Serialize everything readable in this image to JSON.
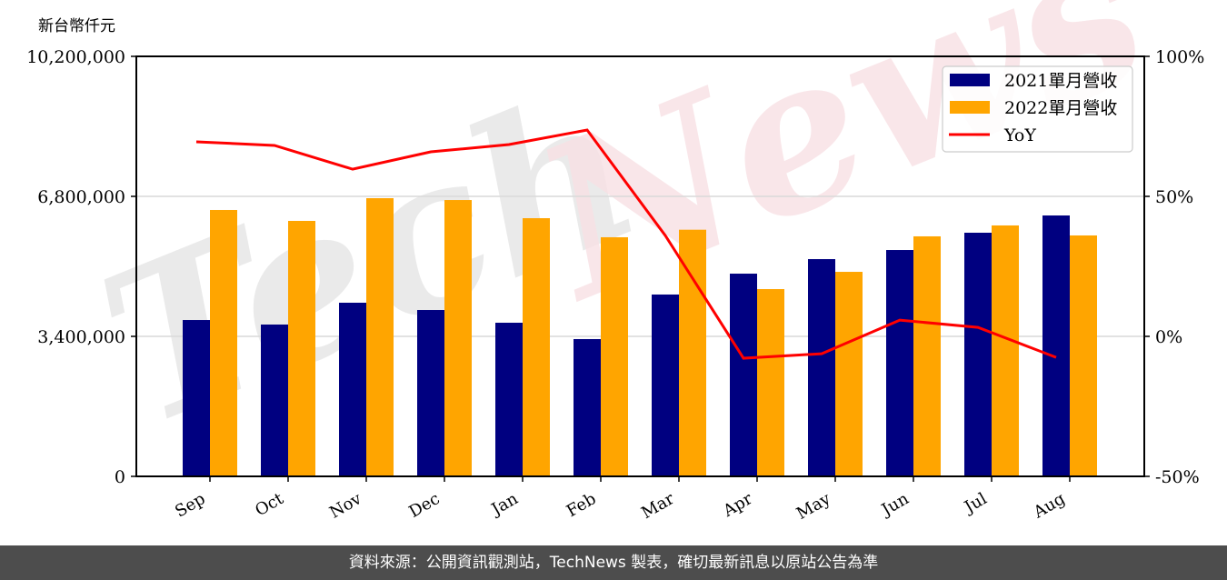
{
  "unit_label": "新台幣仟元",
  "footer": {
    "source_text": "資料來源：公開資訊觀測站，TechNews 製表，確切最新訊息以原站公告為準"
  },
  "watermark": "TechNews",
  "colors": {
    "series_2021": "#000080",
    "series_2022": "#FFA500",
    "yoy_line": "#FF0000",
    "footer_bg": "#4d4d4d",
    "grid": "#d9d9d9"
  },
  "chart_data": {
    "type": "bar",
    "title": "",
    "xlabel": "",
    "ylabel": "新台幣仟元",
    "y2label": "",
    "categories": [
      "Sep",
      "Oct",
      "Nov",
      "Dec",
      "Jan",
      "Feb",
      "Mar",
      "Apr",
      "May",
      "Jun",
      "Jul",
      "Aug"
    ],
    "series": [
      {
        "name": "2021單月營收",
        "type": "bar",
        "axis": "left",
        "color": "#000080",
        "values": [
          3797000,
          3687000,
          4217000,
          4040000,
          3731000,
          3334000,
          4416000,
          4923000,
          5276000,
          5497000,
          5917000,
          6336000
        ]
      },
      {
        "name": "2022單月營收",
        "type": "bar",
        "axis": "left",
        "color": "#FFA500",
        "values": [
          6469000,
          6204000,
          6756000,
          6711000,
          6270000,
          5807000,
          5990000,
          4548000,
          4967000,
          5829000,
          6094000,
          5851000
        ]
      },
      {
        "name": "YoY",
        "type": "line",
        "axis": "right",
        "color": "#FF0000",
        "values": [
          69.5,
          68.2,
          59.7,
          65.9,
          68.5,
          73.7,
          36.0,
          -7.8,
          -6.2,
          5.8,
          3.2,
          -7.5
        ]
      }
    ],
    "ylim": [
      0,
      10200000
    ],
    "y_ticks": [
      0,
      3400000,
      6800000,
      10200000
    ],
    "y_tick_labels": [
      "0",
      "3,400,000",
      "6,800,000",
      "10,200,000"
    ],
    "y2lim": [
      -50,
      100
    ],
    "y2_ticks": [
      -50,
      0,
      50,
      100
    ],
    "y2_tick_labels": [
      "-50%",
      "0%",
      "50%",
      "100%"
    ],
    "grid": true,
    "legend_position": "upper right",
    "legend": [
      "2021單月營收",
      "2022單月營收",
      "YoY"
    ]
  }
}
